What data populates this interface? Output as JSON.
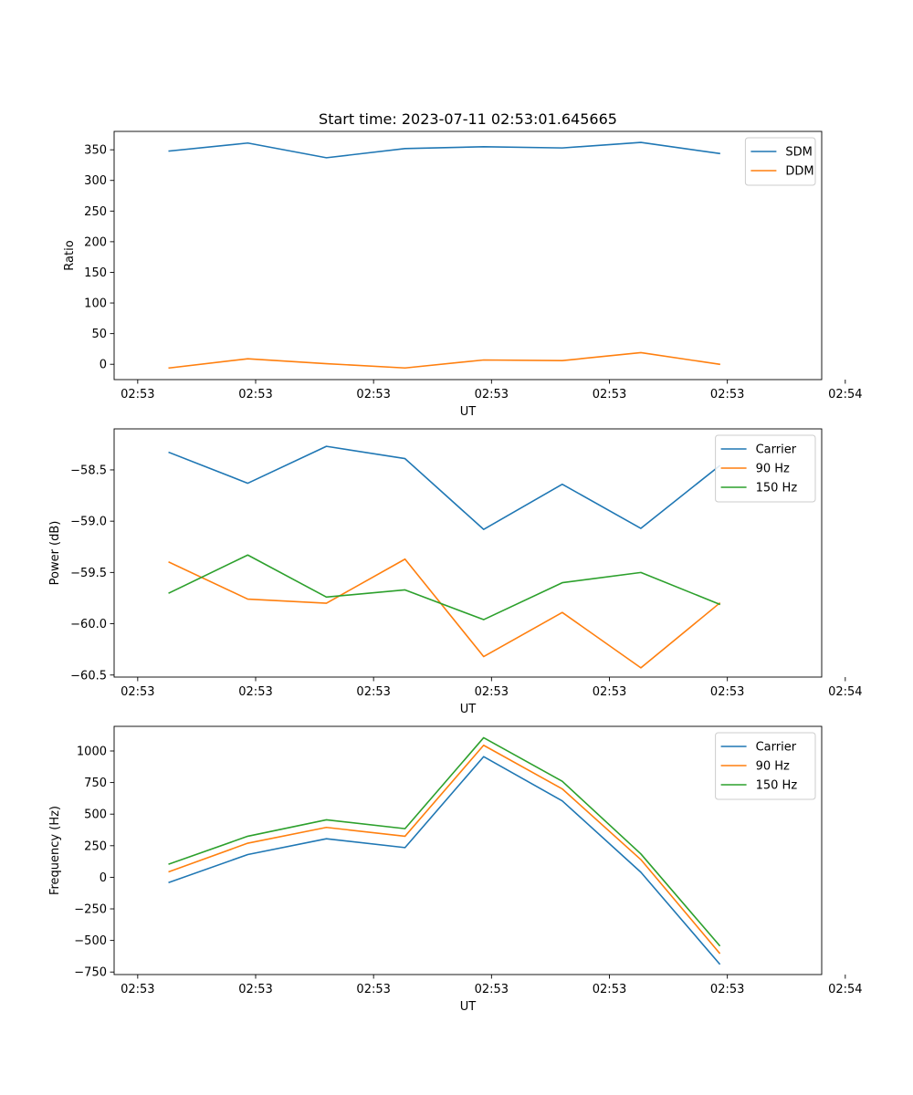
{
  "figure_title": "Start time: 2023-07-11 02:53:01.645665",
  "chart_data": [
    {
      "type": "line",
      "title": "Start time: 2023-07-11 02:53:01.645665",
      "xlabel": "UT",
      "ylabel": "Ratio",
      "xlim": [
        -0.3,
        8.7
      ],
      "ylim": [
        -25,
        380
      ],
      "x": [
        0.4,
        1.4,
        2.4,
        3.4,
        4.4,
        5.4,
        6.4,
        7.4
      ],
      "xticks": [
        0,
        1.5,
        3,
        4.5,
        6,
        7.5,
        9
      ],
      "xtick_labels": [
        "02:53",
        "02:53",
        "02:53",
        "02:53",
        "02:53",
        "02:53",
        "02:54"
      ],
      "yticks": [
        0,
        50,
        100,
        150,
        200,
        250,
        300,
        350
      ],
      "ytick_labels": [
        "0",
        "50",
        "100",
        "150",
        "200",
        "250",
        "300",
        "350"
      ],
      "legend": "top-right",
      "series": [
        {
          "name": "SDM",
          "color": "#1f77b4",
          "values": [
            348,
            361,
            337,
            352,
            355,
            353,
            362,
            344
          ]
        },
        {
          "name": "DDM",
          "color": "#ff7f0e",
          "values": [
            -6,
            9,
            1,
            -6,
            7,
            6,
            19,
            0
          ]
        }
      ]
    },
    {
      "type": "line",
      "title": "",
      "xlabel": "UT",
      "ylabel": "Power (dB)",
      "xlim": [
        -0.3,
        8.7
      ],
      "ylim": [
        -60.52,
        -58.1
      ],
      "x": [
        0.4,
        1.4,
        2.4,
        3.4,
        4.4,
        5.4,
        6.4,
        7.4
      ],
      "xticks": [
        0,
        1.5,
        3,
        4.5,
        6,
        7.5,
        9
      ],
      "xtick_labels": [
        "02:53",
        "02:53",
        "02:53",
        "02:53",
        "02:53",
        "02:53",
        "02:54"
      ],
      "yticks": [
        -60.5,
        -60.0,
        -59.5,
        -59.0,
        -58.5
      ],
      "ytick_labels": [
        "−60.5",
        "−60.0",
        "−59.5",
        "−59.0",
        "−58.5"
      ],
      "legend": "top-right",
      "series": [
        {
          "name": "Carrier",
          "color": "#1f77b4",
          "values": [
            -58.33,
            -58.63,
            -58.27,
            -58.39,
            -59.08,
            -58.64,
            -59.07,
            -58.46
          ]
        },
        {
          "name": "90 Hz",
          "color": "#ff7f0e",
          "values": [
            -59.4,
            -59.76,
            -59.8,
            -59.37,
            -60.32,
            -59.89,
            -60.43,
            -59.8
          ]
        },
        {
          "name": "150 Hz",
          "color": "#2ca02c",
          "values": [
            -59.7,
            -59.33,
            -59.74,
            -59.67,
            -59.96,
            -59.6,
            -59.5,
            -59.81
          ]
        }
      ]
    },
    {
      "type": "line",
      "title": "",
      "xlabel": "UT",
      "ylabel": "Frequency (Hz)",
      "xlim": [
        -0.3,
        8.7
      ],
      "ylim": [
        -770,
        1195
      ],
      "x": [
        0.4,
        1.4,
        2.4,
        3.4,
        4.4,
        5.4,
        6.4,
        7.4
      ],
      "xticks": [
        0,
        1.5,
        3,
        4.5,
        6,
        7.5,
        9
      ],
      "xtick_labels": [
        "02:53",
        "02:53",
        "02:53",
        "02:53",
        "02:53",
        "02:53",
        "02:54"
      ],
      "yticks": [
        -750,
        -500,
        -250,
        0,
        250,
        500,
        750,
        1000
      ],
      "ytick_labels": [
        "−750",
        "−500",
        "−250",
        "0",
        "250",
        "500",
        "750",
        "1000"
      ],
      "legend": "top-right",
      "series": [
        {
          "name": "Carrier",
          "color": "#1f77b4",
          "values": [
            -40,
            180,
            305,
            235,
            955,
            605,
            40,
            -685
          ]
        },
        {
          "name": "90 Hz",
          "color": "#ff7f0e",
          "values": [
            45,
            270,
            395,
            325,
            1045,
            700,
            140,
            -600
          ]
        },
        {
          "name": "150 Hz",
          "color": "#2ca02c",
          "values": [
            105,
            325,
            455,
            385,
            1105,
            760,
            185,
            -540
          ]
        }
      ]
    }
  ]
}
